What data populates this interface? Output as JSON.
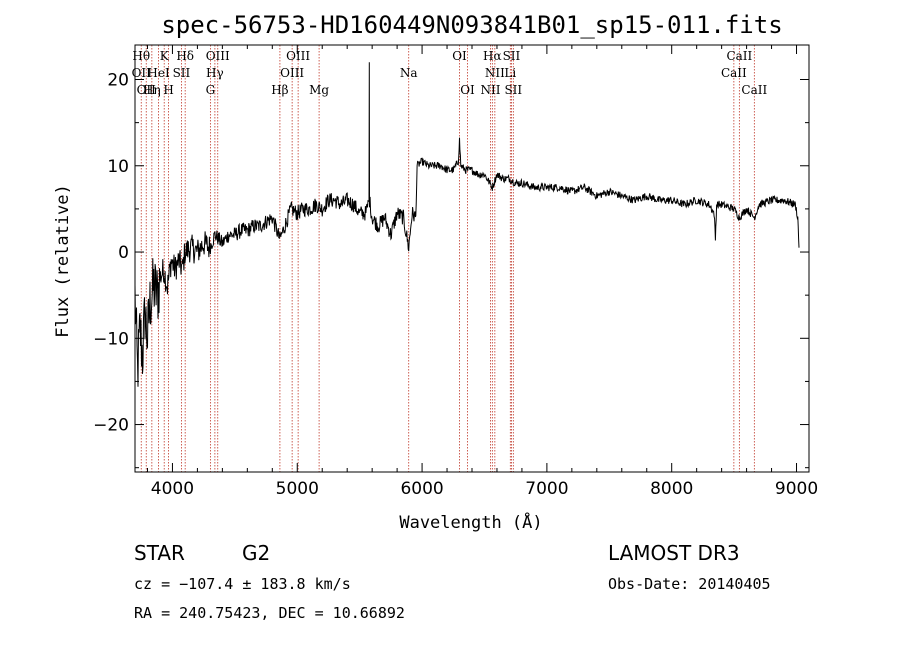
{
  "chart_data": {
    "type": "line",
    "title": "spec-56753-HD160449N093841B01_sp15-011.fits",
    "xlabel": "Wavelength (Å)",
    "ylabel": "Flux (relative)",
    "xlim": [
      3700,
      9100
    ],
    "ylim": [
      -25.5,
      24
    ],
    "xticks": [
      4000,
      5000,
      6000,
      7000,
      8000,
      9000
    ],
    "yticks": [
      -20,
      -10,
      0,
      10,
      20
    ],
    "grid": false,
    "series": [
      {
        "values": [
          [
            3700,
            -5
          ],
          [
            3720,
            -14
          ],
          [
            3740,
            -9
          ],
          [
            3760,
            -12
          ],
          [
            3780,
            -7
          ],
          [
            3800,
            -10
          ],
          [
            3820,
            -6
          ],
          [
            3850,
            -4
          ],
          [
            3880,
            -5
          ],
          [
            3900,
            -3
          ],
          [
            3930,
            -2
          ],
          [
            3960,
            -4
          ],
          [
            3990,
            -1
          ],
          [
            4020,
            -2
          ],
          [
            4050,
            -1
          ],
          [
            4080,
            -2
          ],
          [
            4100,
            0
          ],
          [
            4150,
            0.5
          ],
          [
            4200,
            0
          ],
          [
            4250,
            1
          ],
          [
            4300,
            0.5
          ],
          [
            4340,
            2
          ],
          [
            4400,
            1
          ],
          [
            4450,
            2
          ],
          [
            4500,
            2
          ],
          [
            4550,
            2.5
          ],
          [
            4600,
            2.5
          ],
          [
            4650,
            3
          ],
          [
            4700,
            3
          ],
          [
            4750,
            3.5
          ],
          [
            4800,
            4
          ],
          [
            4860,
            1.5
          ],
          [
            4900,
            3
          ],
          [
            4950,
            5
          ],
          [
            5000,
            4.5
          ],
          [
            5050,
            5
          ],
          [
            5100,
            5
          ],
          [
            5150,
            5.5
          ],
          [
            5200,
            5
          ],
          [
            5250,
            6
          ],
          [
            5300,
            6
          ],
          [
            5350,
            5.5
          ],
          [
            5400,
            6
          ],
          [
            5450,
            5.5
          ],
          [
            5500,
            4.5
          ],
          [
            5550,
            4.5
          ],
          [
            5575,
            6
          ],
          [
            5577,
            22
          ],
          [
            5579,
            6
          ],
          [
            5600,
            4
          ],
          [
            5650,
            3
          ],
          [
            5700,
            4
          ],
          [
            5750,
            2
          ],
          [
            5800,
            4.5
          ],
          [
            5850,
            4
          ],
          [
            5893,
            0.5
          ],
          [
            5920,
            4.5
          ],
          [
            5950,
            4
          ],
          [
            5960,
            10
          ],
          [
            6000,
            10.5
          ],
          [
            6050,
            10
          ],
          [
            6100,
            10
          ],
          [
            6150,
            10
          ],
          [
            6200,
            9.5
          ],
          [
            6250,
            9.5
          ],
          [
            6290,
            10.5
          ],
          [
            6300,
            13
          ],
          [
            6310,
            10
          ],
          [
            6350,
            9.5
          ],
          [
            6400,
            9.5
          ],
          [
            6450,
            9
          ],
          [
            6500,
            9
          ],
          [
            6563,
            7.5
          ],
          [
            6600,
            9
          ],
          [
            6650,
            8.5
          ],
          [
            6700,
            8.5
          ],
          [
            6750,
            8
          ],
          [
            6800,
            8
          ],
          [
            6900,
            7.5
          ],
          [
            7000,
            7.5
          ],
          [
            7100,
            7.5
          ],
          [
            7200,
            7
          ],
          [
            7300,
            7.5
          ],
          [
            7400,
            6.5
          ],
          [
            7500,
            7
          ],
          [
            7600,
            6.5
          ],
          [
            7700,
            6
          ],
          [
            7800,
            6.5
          ],
          [
            7900,
            6
          ],
          [
            8000,
            6
          ],
          [
            8100,
            5.5
          ],
          [
            8200,
            6
          ],
          [
            8300,
            5.5
          ],
          [
            8340,
            4.5
          ],
          [
            8350,
            1.5
          ],
          [
            8360,
            5.5
          ],
          [
            8400,
            5.5
          ],
          [
            8500,
            5
          ],
          [
            8542,
            4
          ],
          [
            8600,
            5
          ],
          [
            8662,
            4
          ],
          [
            8700,
            5.5
          ],
          [
            8800,
            6
          ],
          [
            8900,
            6
          ],
          [
            8990,
            5.5
          ],
          [
            9010,
            4
          ],
          [
            9020,
            0.5
          ]
        ]
      }
    ],
    "lines": [
      {
        "x": 3750,
        "labels": [
          "Hθ",
          "OII"
        ]
      },
      {
        "x": 3790,
        "labels": [
          "OII"
        ]
      },
      {
        "x": 3835,
        "labels": [
          "Hη"
        ]
      },
      {
        "x": 3889,
        "labels": [
          "HeI"
        ]
      },
      {
        "x": 3934,
        "labels": [
          "K"
        ]
      },
      {
        "x": 3969,
        "labels": [
          "H"
        ]
      },
      {
        "x": 4072,
        "labels": [
          "SII"
        ]
      },
      {
        "x": 4102,
        "labels": [
          "Hδ"
        ]
      },
      {
        "x": 4304,
        "labels": [
          "G"
        ]
      },
      {
        "x": 4340,
        "labels": [
          "Hγ"
        ]
      },
      {
        "x": 4363,
        "labels": [
          "OIII"
        ]
      },
      {
        "x": 4861,
        "labels": [
          "Hβ"
        ]
      },
      {
        "x": 4959,
        "labels": [
          "OIII"
        ]
      },
      {
        "x": 5007,
        "labels": [
          "OIII"
        ]
      },
      {
        "x": 5175,
        "labels": [
          "Mg"
        ]
      },
      {
        "x": 5893,
        "labels": [
          "Na"
        ]
      },
      {
        "x": 6300,
        "labels": [
          "OI"
        ]
      },
      {
        "x": 6364,
        "labels": [
          "OI"
        ]
      },
      {
        "x": 6548,
        "labels": [
          "NII"
        ]
      },
      {
        "x": 6563,
        "labels": [
          "Hα"
        ]
      },
      {
        "x": 6583,
        "labels": [
          "NII"
        ]
      },
      {
        "x": 6707,
        "labels": [
          "Li"
        ]
      },
      {
        "x": 6716,
        "labels": [
          "SII"
        ]
      },
      {
        "x": 6731,
        "labels": [
          "SII"
        ]
      },
      {
        "x": 8498,
        "labels": [
          "CaII"
        ]
      },
      {
        "x": 8542,
        "labels": [
          "CaII"
        ]
      },
      {
        "x": 8662,
        "labels": [
          "CaII"
        ]
      }
    ],
    "line_label_text": [
      {
        "text": "Hθ",
        "x": 3750,
        "row": 1
      },
      {
        "text": "K",
        "x": 3934,
        "row": 1
      },
      {
        "text": "Hδ",
        "x": 4102,
        "row": 1
      },
      {
        "text": "OIII",
        "x": 4363,
        "row": 1
      },
      {
        "text": "OIII",
        "x": 5007,
        "row": 1
      },
      {
        "text": "OI",
        "x": 6300,
        "row": 1
      },
      {
        "text": "Hα",
        "x": 6563,
        "row": 1
      },
      {
        "text": "SII",
        "x": 6716,
        "row": 1
      },
      {
        "text": "CaII",
        "x": 8542,
        "row": 1
      },
      {
        "text": "OII",
        "x": 3750,
        "row": 2
      },
      {
        "text": "HeI",
        "x": 3889,
        "row": 2
      },
      {
        "text": "SII",
        "x": 4072,
        "row": 2
      },
      {
        "text": "Hγ",
        "x": 4340,
        "row": 2
      },
      {
        "text": "OIII",
        "x": 4959,
        "row": 2
      },
      {
        "text": "Na",
        "x": 5893,
        "row": 2
      },
      {
        "text": "NII",
        "x": 6583,
        "row": 2
      },
      {
        "text": "Li",
        "x": 6707,
        "row": 2
      },
      {
        "text": "CaII",
        "x": 8498,
        "row": 2
      },
      {
        "text": "OII",
        "x": 3790,
        "row": 3
      },
      {
        "text": "Hη",
        "x": 3835,
        "row": 3
      },
      {
        "text": "H",
        "x": 3969,
        "row": 3
      },
      {
        "text": "G",
        "x": 4304,
        "row": 3
      },
      {
        "text": "Hβ",
        "x": 4861,
        "row": 3
      },
      {
        "text": "Mg",
        "x": 5175,
        "row": 3
      },
      {
        "text": "OI",
        "x": 6364,
        "row": 3
      },
      {
        "text": "NII",
        "x": 6548,
        "row": 3
      },
      {
        "text": "SII",
        "x": 6731,
        "row": 3
      },
      {
        "text": "CaII",
        "x": 8662,
        "row": 3
      }
    ]
  },
  "info": {
    "class": "STAR",
    "subclass": "G2",
    "survey": "LAMOST DR3",
    "cz": "cz = −107.4 ± 183.8 km/s",
    "obs_date": "Obs-Date: 20140405",
    "coords": "RA = 240.75423, DEC =  10.66892"
  },
  "colors": {
    "spectrum": "#000000",
    "line_markers": "#c0392b",
    "axes": "#000000"
  }
}
